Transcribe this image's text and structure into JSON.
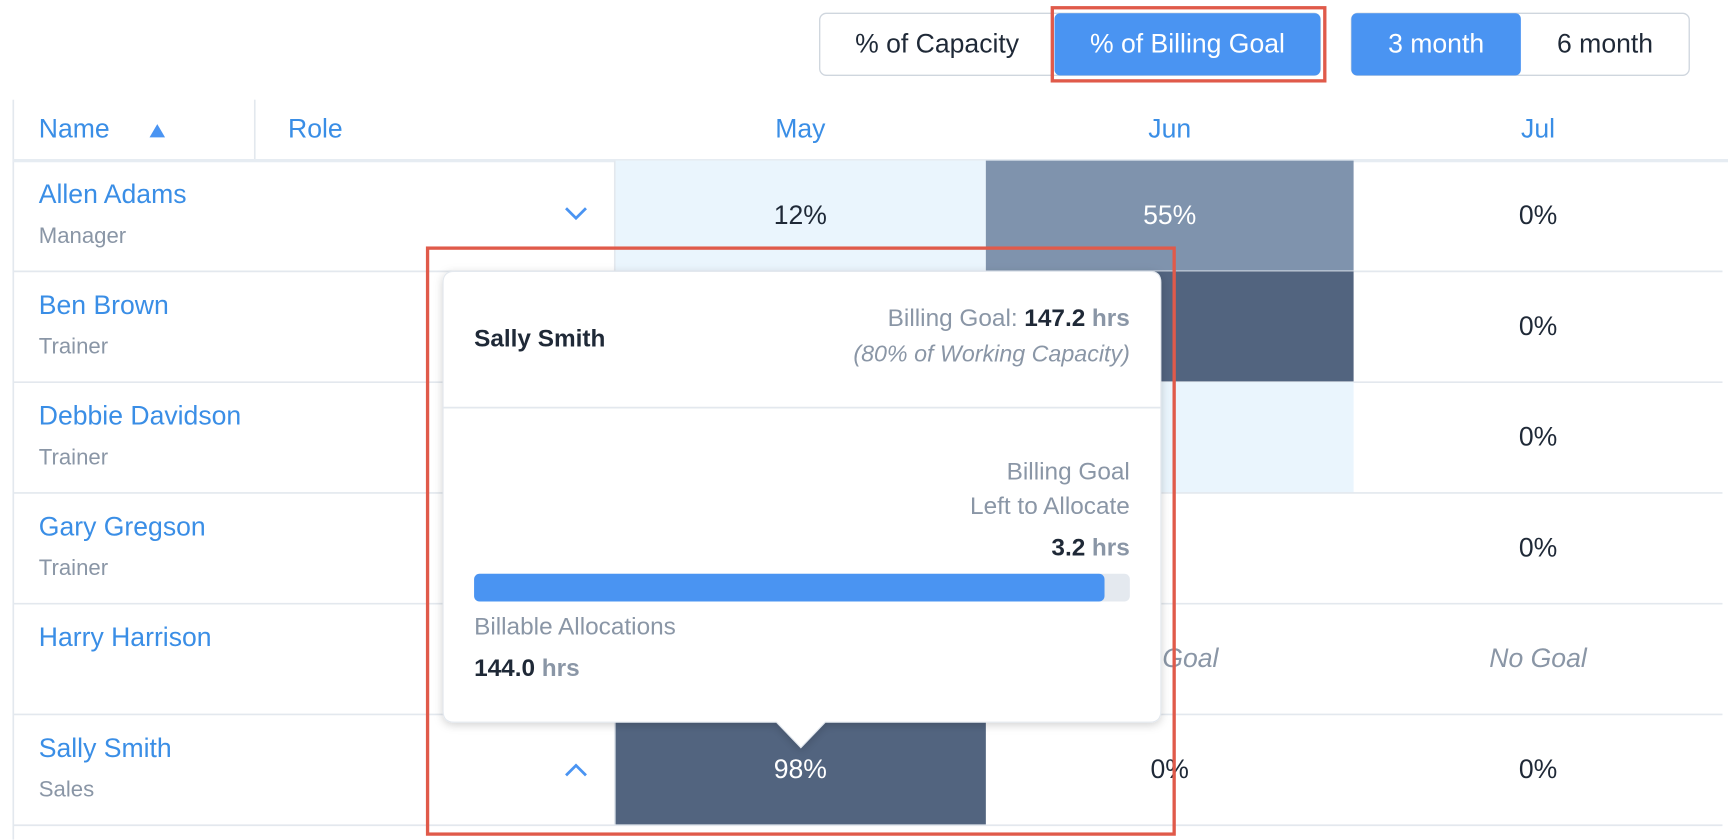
{
  "toolbar": {
    "metric_toggle": [
      "% of Capacity",
      "% of Billing Goal"
    ],
    "active_metric": 1,
    "range_toggle": [
      "3 month",
      "6 month"
    ],
    "active_range": 0
  },
  "table": {
    "columns": {
      "name": "Name",
      "role": "Role",
      "months": [
        "May",
        "Jun",
        "Jul"
      ]
    },
    "rows": [
      {
        "name": "Allen Adams",
        "role": "Manager",
        "expand": "down",
        "cells": [
          {
            "text": "12%",
            "shade": "light"
          },
          {
            "text": "55%",
            "shade": "mid"
          },
          {
            "text": "0%",
            "shade": "none"
          }
        ]
      },
      {
        "name": "Ben Brown",
        "role": "Trainer",
        "cells": [
          {
            "shade": "none"
          },
          {
            "shade": "dark"
          },
          {
            "text": "0%",
            "shade": "none"
          }
        ]
      },
      {
        "name": "Debbie Davidson",
        "role": "Trainer",
        "cells": [
          {
            "shade": "none"
          },
          {
            "shade": "light"
          },
          {
            "text": "0%",
            "shade": "none"
          }
        ]
      },
      {
        "name": "Gary Gregson",
        "role": "Trainer",
        "cells": [
          {
            "shade": "none"
          },
          {
            "shade": "none"
          },
          {
            "text": "0%",
            "shade": "none"
          }
        ]
      },
      {
        "name": "Harry Harrison",
        "cells": [
          {
            "shade": "none"
          },
          {
            "text": "No Goal",
            "shade": "none"
          },
          {
            "text": "No Goal",
            "shade": "none"
          }
        ]
      },
      {
        "name": "Sally Smith",
        "role": "Sales",
        "expand": "up",
        "cells": [
          {
            "text": "98%",
            "shade": "dark"
          },
          {
            "text": "0%",
            "shade": "none"
          },
          {
            "text": "0%",
            "shade": "none"
          }
        ]
      }
    ]
  },
  "tooltip": {
    "person": "Sally Smith",
    "goal_label": "Billing Goal:",
    "goal_value": "147.2",
    "unit": "hrs",
    "goal_note": "(80% of Working Capacity)",
    "left_label": [
      "Billing Goal",
      "Left to Allocate"
    ],
    "left_value": "3.2",
    "allocated_label": "Billable Allocations",
    "allocated_value": "144.0"
  }
}
